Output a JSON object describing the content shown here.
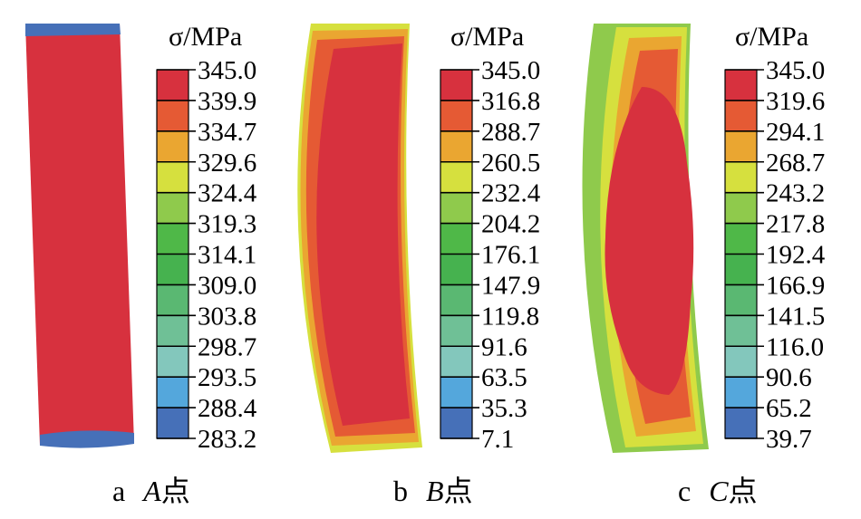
{
  "colors": [
    "#d7313e",
    "#e55a34",
    "#eaa631",
    "#d6e03e",
    "#8fca4c",
    "#4fb848",
    "#46b24f",
    "#5ab872",
    "#6fc096",
    "#83c7bc",
    "#54a7dc",
    "#4670b8",
    "#3b4da2"
  ],
  "chart_data": [
    {
      "type": "heatmap",
      "unit_label": "σ/MPa",
      "caption_letter": "a",
      "caption_point": "A",
      "caption_suffix": "点",
      "ticks": [
        "345.0",
        "339.9",
        "334.7",
        "329.6",
        "324.4",
        "319.3",
        "314.1",
        "309.0",
        "303.8",
        "298.7",
        "293.5",
        "288.4",
        "283.2"
      ],
      "scale_max": 345.0,
      "scale_min": 283.2
    },
    {
      "type": "heatmap",
      "unit_label": "σ/MPa",
      "caption_letter": "b",
      "caption_point": "B",
      "caption_suffix": "点",
      "ticks": [
        "345.0",
        "316.8",
        "288.7",
        "260.5",
        "232.4",
        "204.2",
        "176.1",
        "147.9",
        "119.8",
        "91.6",
        "63.5",
        "35.3",
        "7.1"
      ],
      "scale_max": 345.0,
      "scale_min": 7.1
    },
    {
      "type": "heatmap",
      "unit_label": "σ/MPa",
      "caption_letter": "c",
      "caption_point": "C",
      "caption_suffix": "点",
      "ticks": [
        "345.0",
        "319.6",
        "294.1",
        "268.7",
        "243.2",
        "217.8",
        "192.4",
        "166.9",
        "141.5",
        "116.0",
        "90.6",
        "65.2",
        "39.7"
      ],
      "scale_max": 345.0,
      "scale_min": 39.7
    }
  ]
}
